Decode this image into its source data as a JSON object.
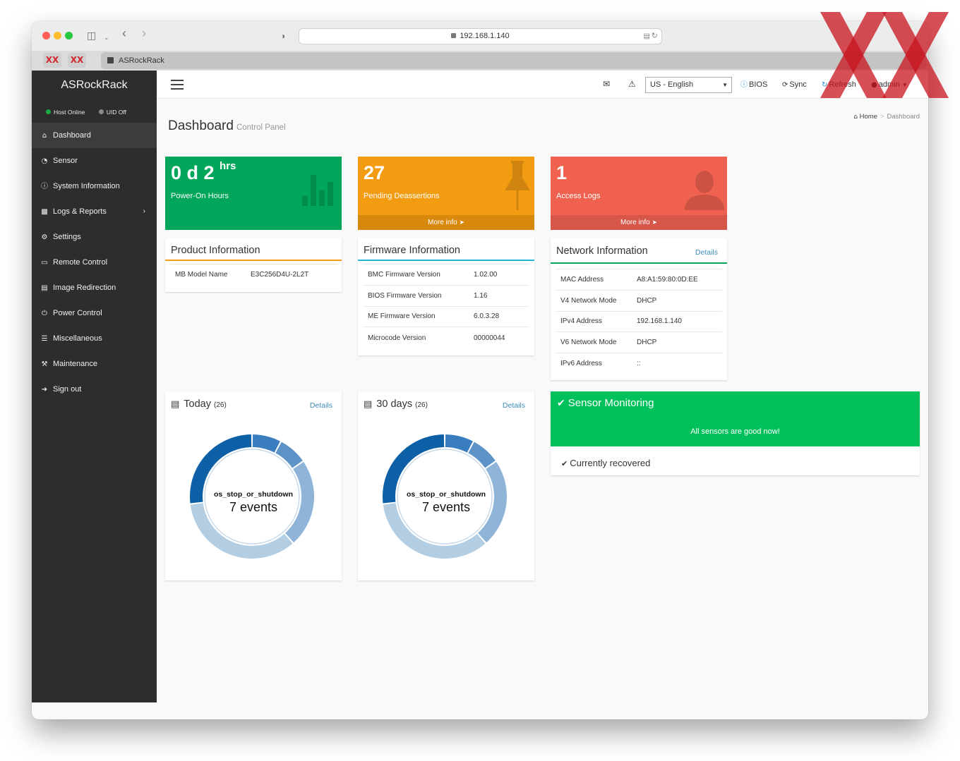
{
  "browser": {
    "url": "192.168.1.140",
    "tab_title": "ASRockRack",
    "pinned_tab_label": "XX"
  },
  "sidebar": {
    "brand": "ASRockRack",
    "host_status": "Host Online",
    "uid_status": "UID Off",
    "items": [
      {
        "label": "Dashboard",
        "icon": "home-icon"
      },
      {
        "label": "Sensor",
        "icon": "dashboard-gauge-icon"
      },
      {
        "label": "System Information",
        "icon": "info-circle-icon"
      },
      {
        "label": "Logs & Reports",
        "icon": "bar-chart-icon"
      },
      {
        "label": "Settings",
        "icon": "gear-icon"
      },
      {
        "label": "Remote Control",
        "icon": "monitor-icon"
      },
      {
        "label": "Image Redirection",
        "icon": "drive-icon"
      },
      {
        "label": "Power Control",
        "icon": "power-icon"
      },
      {
        "label": "Miscellaneous",
        "icon": "list-icon"
      },
      {
        "label": "Maintenance",
        "icon": "wrench-icon"
      },
      {
        "label": "Sign out",
        "icon": "sign-out-icon"
      }
    ]
  },
  "topbar": {
    "language": "US - English",
    "bios_label": "BIOS",
    "sync_label": "Sync",
    "refresh_label": "Refresh",
    "user_label": "admin"
  },
  "page": {
    "title": "Dashboard",
    "subtitle": "Control Panel",
    "breadcrumb_home": "Home",
    "breadcrumb_current": "Dashboard"
  },
  "stats": {
    "power_on": {
      "value": "0 d 2",
      "unit": "hrs",
      "label": "Power-On Hours",
      "color": "#00a65a"
    },
    "pending": {
      "value": "27",
      "label": "Pending Deassertions",
      "more": "More info",
      "color": "#f39c12"
    },
    "access": {
      "value": "1",
      "label": "Access Logs",
      "more": "More info",
      "color": "#f0624f"
    }
  },
  "product": {
    "title": "Product Information",
    "rows": [
      {
        "k": "MB Model Name",
        "v": "E3C256D4U-2L2T"
      }
    ]
  },
  "firmware": {
    "title": "Firmware Information",
    "rows": [
      {
        "k": "BMC Firmware Version",
        "v": "1.02.00"
      },
      {
        "k": "BIOS Firmware Version",
        "v": "1.16"
      },
      {
        "k": "ME Firmware Version",
        "v": "6.0.3.28"
      },
      {
        "k": "Microcode Version",
        "v": "00000044"
      }
    ]
  },
  "network": {
    "title": "Network Information",
    "details": "Details",
    "rows": [
      {
        "k": "MAC Address",
        "v": "A8:A1:59:80:0D:EE"
      },
      {
        "k": "V4 Network Mode",
        "v": "DHCP"
      },
      {
        "k": "IPv4 Address",
        "v": "192.168.1.140"
      },
      {
        "k": "V6 Network Mode",
        "v": "DHCP"
      },
      {
        "k": "IPv6 Address",
        "v": "::"
      }
    ]
  },
  "today": {
    "title": "Today",
    "count": "(26)",
    "details": "Details",
    "center_label": "os_stop_or_shutdown",
    "center_value": "7 events"
  },
  "thirty": {
    "title": "30 days",
    "count": "(26)",
    "details": "Details",
    "center_label": "os_stop_or_shutdown",
    "center_value": "7 events"
  },
  "donut_segments": [
    {
      "value": 7,
      "color": "#0d5fa6"
    },
    {
      "value": 9,
      "color": "#b3cee3"
    },
    {
      "value": 6,
      "color": "#8fb4d8"
    },
    {
      "value": 2,
      "color": "#5e93c7"
    },
    {
      "value": 2,
      "color": "#3a7ebf"
    }
  ],
  "sensor": {
    "title": "Sensor Monitoring",
    "message": "All sensors are good now!",
    "recovered": "Currently recovered"
  }
}
